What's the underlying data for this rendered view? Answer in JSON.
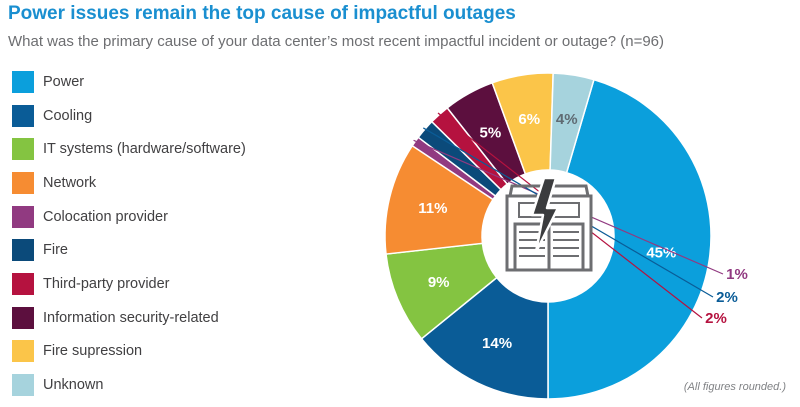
{
  "chart_data": {
    "type": "pie",
    "title": "Power issues remain the top cause of impactful outages",
    "subtitle": "What was the primary cause of your data center’s most recent impactful incident or outage? (n=96)",
    "note": "(All figures rounded.)",
    "legend_position": "left",
    "donut": true,
    "center_icon": "data-center-power-icon",
    "slices": [
      {
        "label": "Power",
        "value": 45,
        "display": "45%",
        "color": "#0b9fdc"
      },
      {
        "label": "Cooling",
        "value": 14,
        "display": "14%",
        "color": "#0a5c97"
      },
      {
        "label": "IT systems (hardware/software)",
        "value": 9,
        "display": "9%",
        "color": "#84c441"
      },
      {
        "label": "Network",
        "value": 11,
        "display": "11%",
        "color": "#f68c32"
      },
      {
        "label": "Colocation provider",
        "value": 1,
        "display": "1%",
        "color": "#913a81"
      },
      {
        "label": "Fire",
        "value": 2,
        "display": "2%",
        "color": "#0b4a7a"
      },
      {
        "label": "Third-party provider",
        "value": 2,
        "display": "2%",
        "color": "#b5123f"
      },
      {
        "label": "Information security-related",
        "value": 5,
        "display": "5%",
        "color": "#5c0f3e"
      },
      {
        "label": "Fire supression",
        "value": 6,
        "display": "6%",
        "color": "#fbc549"
      },
      {
        "label": "Unknown",
        "value": 4,
        "display": "4%",
        "color": "#a6d3dd"
      }
    ]
  }
}
